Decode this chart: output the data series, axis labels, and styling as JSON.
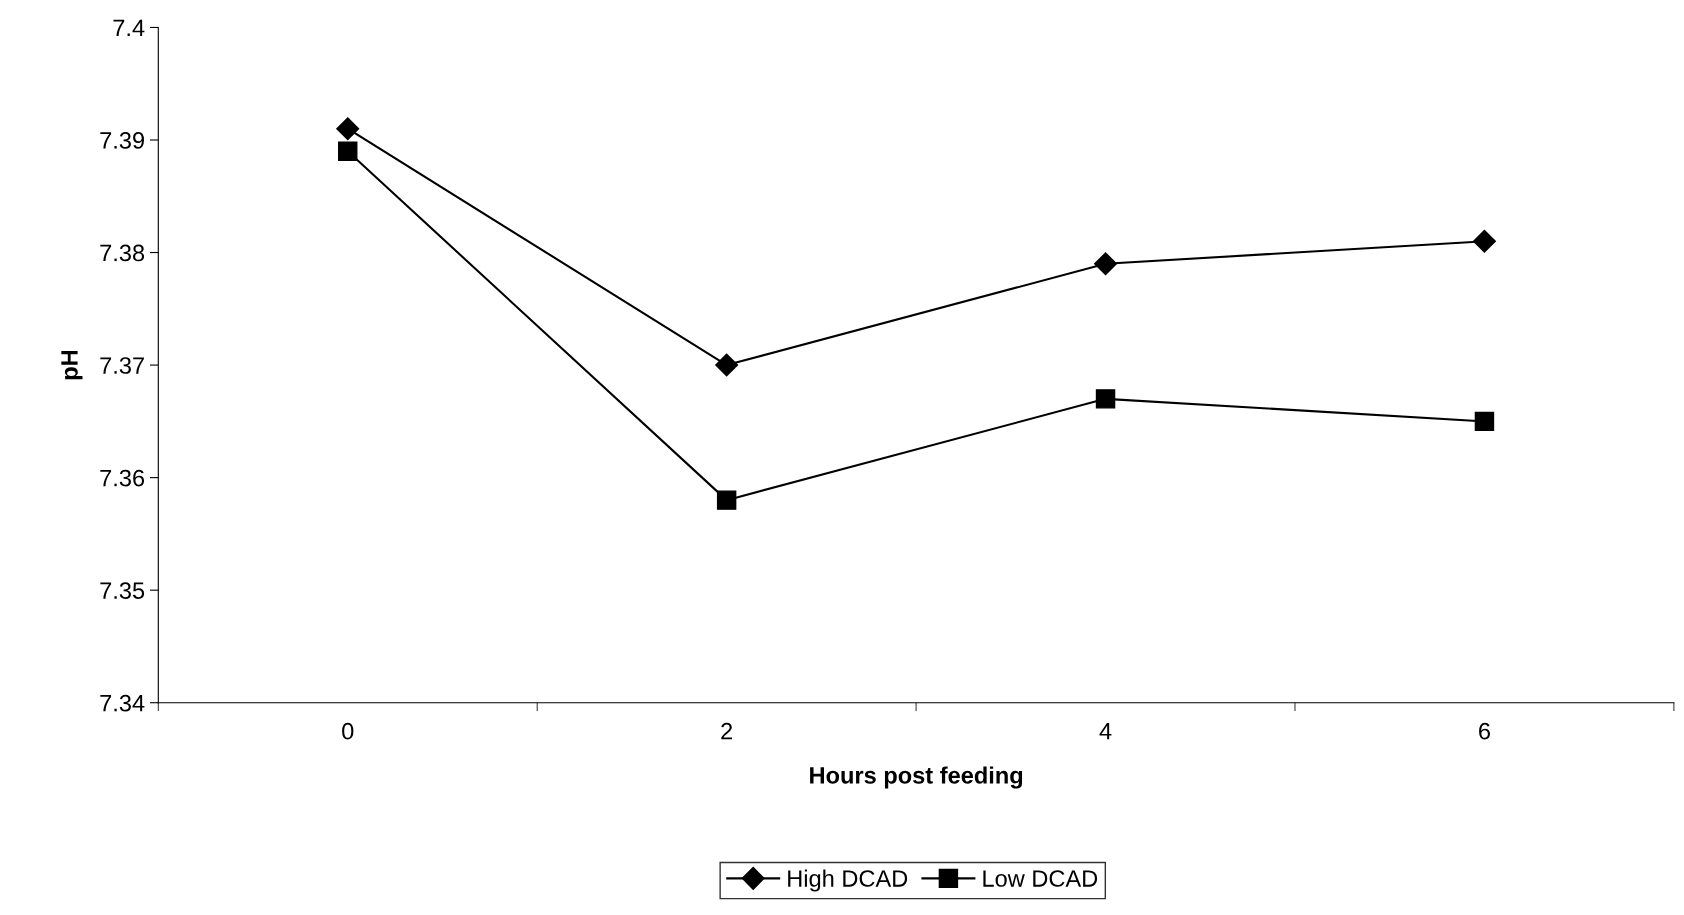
{
  "chart_data": {
    "type": "line",
    "xlabel": "Hours post feeding",
    "ylabel": "pH",
    "categories": [
      "0",
      "2",
      "4",
      "6"
    ],
    "series": [
      {
        "name": "High DCAD",
        "color": "#000000",
        "marker": "diamond",
        "values": [
          7.391,
          7.37,
          7.379,
          7.381
        ]
      },
      {
        "name": "Low DCAD",
        "color": "#000000",
        "marker": "square",
        "values": [
          7.389,
          7.358,
          7.367,
          7.365
        ]
      }
    ],
    "ylim": [
      7.34,
      7.4
    ],
    "yticks": [
      7.34,
      7.35,
      7.36,
      7.37,
      7.38,
      7.39,
      7.4
    ],
    "grid": false,
    "legend": "bottom",
    "line_style": "solid"
  }
}
